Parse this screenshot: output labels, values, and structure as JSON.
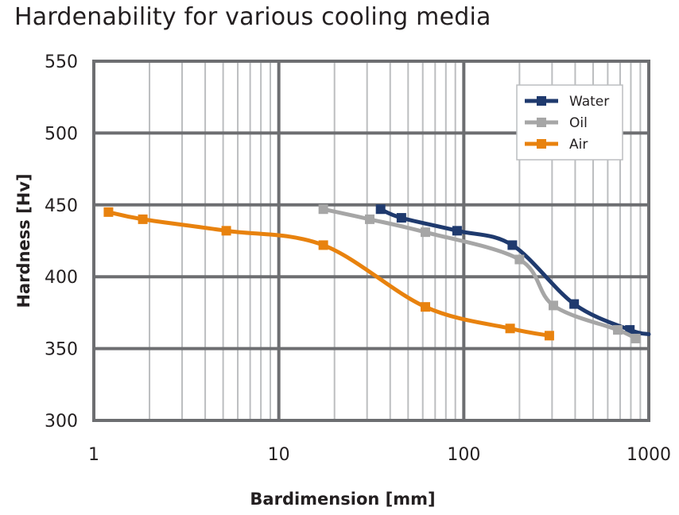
{
  "chart_data": {
    "type": "line",
    "title": "Hardenability for various cooling media",
    "xlabel": "Bardimension [mm]",
    "ylabel": "Hardness [Hv]",
    "x_scale": "log",
    "xlim": [
      1,
      1000
    ],
    "ylim": [
      300,
      550
    ],
    "x_ticks": [
      "1",
      "10",
      "100",
      "1000"
    ],
    "y_ticks": [
      "300",
      "350",
      "400",
      "450",
      "500",
      "550"
    ],
    "grid": true,
    "legend_position": "top-right",
    "series": [
      {
        "name": "Water",
        "color": "#1f3a6e",
        "points": [
          [
            35.5,
            447
          ],
          [
            46,
            441
          ],
          [
            92,
            432
          ],
          [
            183,
            422
          ],
          [
            395,
            381
          ],
          [
            790,
            363
          ],
          [
            1000,
            360
          ]
        ]
      },
      {
        "name": "Oil",
        "color": "#a6a6a6",
        "points": [
          [
            17.4,
            447
          ],
          [
            31,
            440
          ],
          [
            62,
            431
          ],
          [
            200,
            412
          ],
          [
            305,
            380
          ],
          [
            680,
            363
          ],
          [
            850,
            357
          ]
        ]
      },
      {
        "name": "Air",
        "color": "#e8820e",
        "points": [
          [
            1.2,
            445
          ],
          [
            1.84,
            440
          ],
          [
            5.2,
            432
          ],
          [
            17.4,
            422
          ],
          [
            62,
            379
          ],
          [
            178,
            364
          ],
          [
            290,
            359
          ]
        ]
      }
    ]
  }
}
